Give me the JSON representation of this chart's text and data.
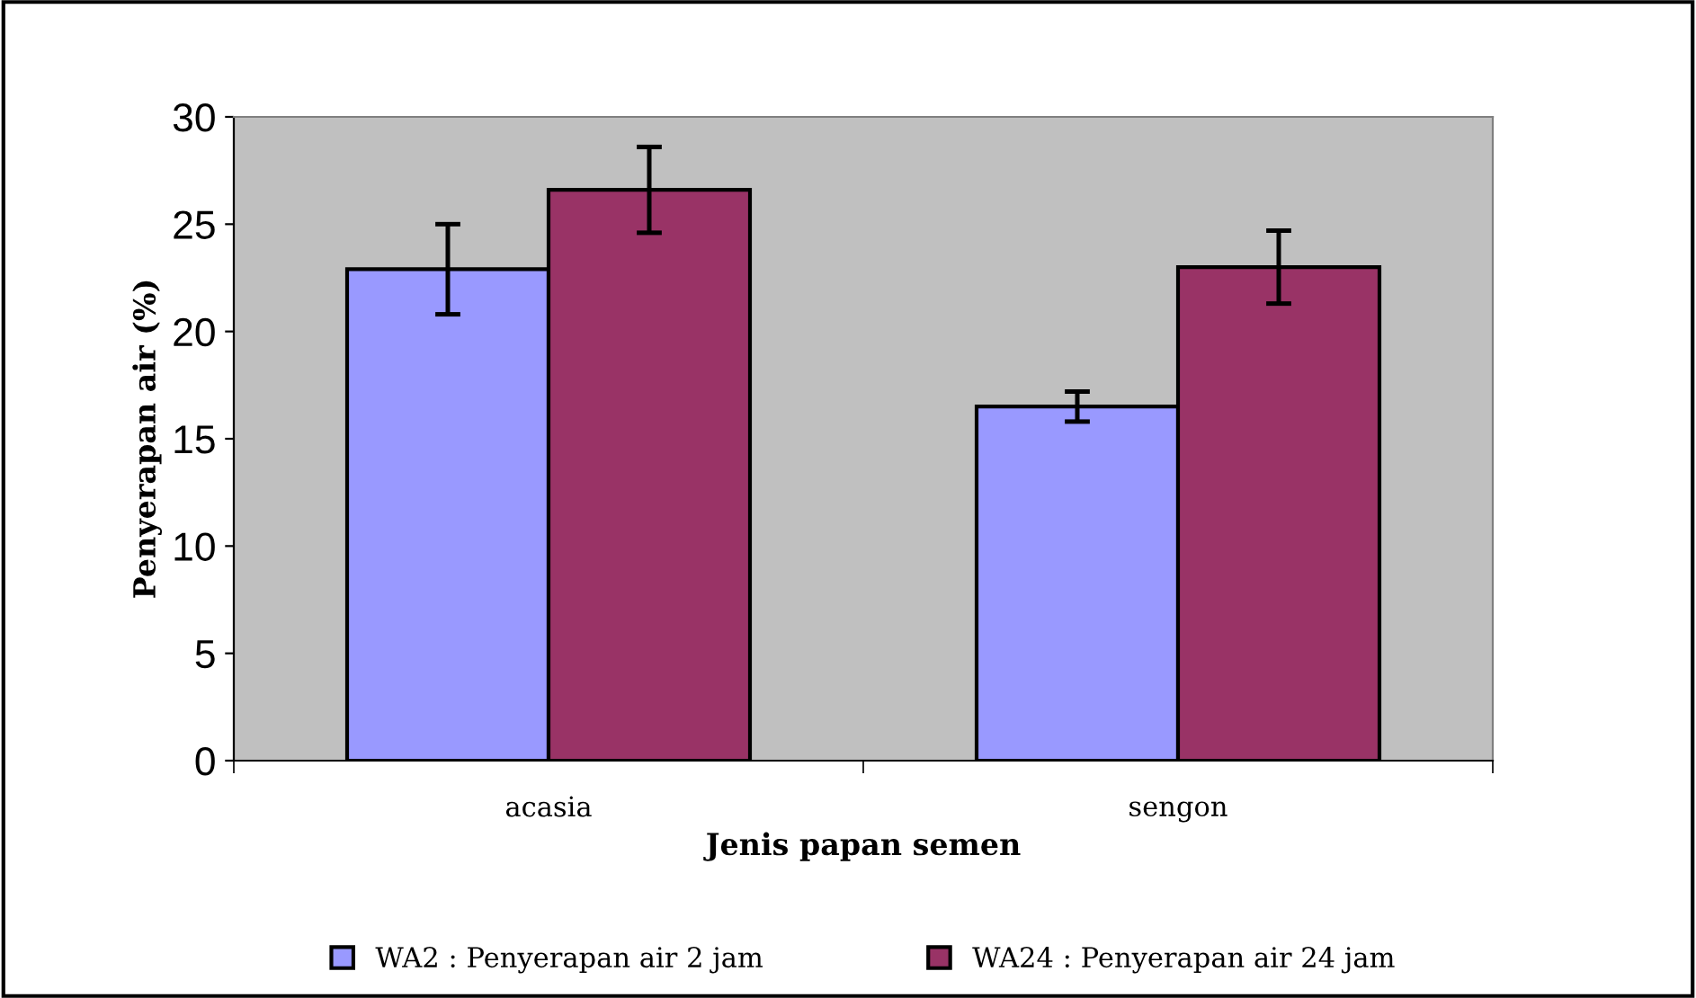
{
  "chart_data": {
    "type": "bar",
    "xlabel": "Jenis papan semen",
    "ylabel": "Penyerapan air (%)",
    "categories": [
      "acasia",
      "sengon"
    ],
    "series": [
      {
        "name": "WA2 : Penyerapan air 2 jam",
        "color": "#9999ff",
        "values": [
          22.9,
          16.5
        ],
        "errors": [
          2.1,
          0.7
        ]
      },
      {
        "name": "WA24 : Penyerapan air 24 jam",
        "color": "#993366",
        "values": [
          26.6,
          23.0
        ],
        "errors": [
          2.0,
          1.7
        ]
      }
    ],
    "ylim": [
      0,
      30
    ],
    "yticks": [
      0,
      5,
      10,
      15,
      20,
      25,
      30
    ],
    "grid": false,
    "legend": "bottom"
  }
}
